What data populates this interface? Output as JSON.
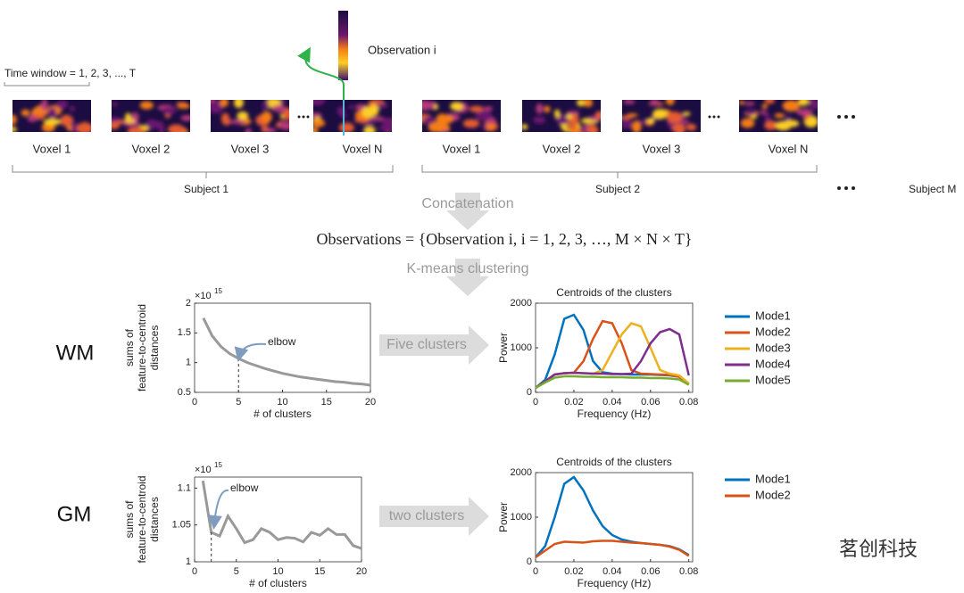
{
  "observation_label": "Observation i",
  "time_window_label": "Time window = 1, 2, 3, ..., T",
  "subjects": [
    {
      "label": "Subject 1",
      "voxels": [
        "Voxel 1",
        "Voxel 2",
        "Voxel 3",
        "Voxel N"
      ]
    },
    {
      "label": "Subject 2",
      "voxels": [
        "Voxel 1",
        "Voxel 2",
        "Voxel 3",
        "Voxel N"
      ]
    },
    {
      "label": "Subject M"
    }
  ],
  "concatenation_label": "Concatenation",
  "observations_formula": "Observations = {Observation i, i = 1, 2, 3, …, M × N × T}",
  "clustering_label": "K-means clustering",
  "rows": [
    {
      "label": "WM",
      "arrow_label": "Five clusters"
    },
    {
      "label": "GM",
      "arrow_label": "two clusters"
    }
  ],
  "watermark": "茗创科技",
  "chart_data": [
    {
      "type": "line",
      "y_label": [
        "sums of",
        "feature-to-centroid",
        "distances"
      ],
      "x_label": "# of clusters",
      "y_multiplier": {
        "base": "×10",
        "exponent": "15"
      },
      "x": [
        1,
        2,
        3,
        4,
        5,
        6,
        7,
        8,
        9,
        10,
        11,
        12,
        13,
        14,
        15,
        16,
        17,
        18,
        19,
        20
      ],
      "series": [
        {
          "color": "#999999",
          "values": [
            1.75,
            1.45,
            1.27,
            1.15,
            1.07,
            1.0,
            0.95,
            0.9,
            0.86,
            0.82,
            0.79,
            0.76,
            0.74,
            0.72,
            0.7,
            0.68,
            0.67,
            0.65,
            0.64,
            0.62
          ]
        }
      ],
      "xlim": [
        0,
        20
      ],
      "xticks": [
        0,
        5,
        10,
        15,
        20
      ],
      "ylim": [
        0.5,
        2
      ],
      "yticks": [
        0.5,
        1,
        1.5,
        2
      ],
      "annotation": {
        "label": "elbow",
        "x": 5
      }
    },
    {
      "type": "line",
      "title": "Centroids of the clusters",
      "y_label": [
        "Power"
      ],
      "x_label": "Frequency (Hz)",
      "x": [
        0,
        0.005,
        0.01,
        0.015,
        0.02,
        0.025,
        0.03,
        0.035,
        0.04,
        0.045,
        0.05,
        0.055,
        0.06,
        0.065,
        0.07,
        0.075,
        0.08
      ],
      "series": [
        {
          "name": "Mode1",
          "color": "#0072bd",
          "values": [
            100,
            280,
            850,
            1650,
            1740,
            1400,
            700,
            450,
            420,
            410,
            400,
            400,
            400,
            390,
            380,
            350,
            180
          ]
        },
        {
          "name": "Mode2",
          "color": "#d95319",
          "values": [
            100,
            250,
            400,
            430,
            440,
            700,
            1200,
            1600,
            1550,
            1100,
            500,
            420,
            410,
            400,
            390,
            350,
            180
          ]
        },
        {
          "name": "Mode3",
          "color": "#edb120",
          "values": [
            100,
            250,
            400,
            430,
            440,
            430,
            420,
            500,
            900,
            1300,
            1550,
            1480,
            1000,
            500,
            420,
            380,
            200
          ]
        },
        {
          "name": "Mode4",
          "color": "#7e2f8e",
          "values": [
            100,
            250,
            400,
            430,
            440,
            430,
            420,
            420,
            410,
            410,
            420,
            700,
            1100,
            1350,
            1420,
            1300,
            380
          ]
        },
        {
          "name": "Mode5",
          "color": "#77ac30",
          "values": [
            100,
            220,
            330,
            360,
            360,
            350,
            350,
            340,
            340,
            340,
            330,
            330,
            320,
            320,
            310,
            290,
            170
          ]
        }
      ],
      "xlim": [
        0,
        0.082
      ],
      "xticks": [
        0,
        0.02,
        0.04,
        0.06,
        0.08
      ],
      "ylim": [
        0,
        2000
      ],
      "yticks": [
        0,
        1000,
        2000
      ]
    },
    {
      "type": "line",
      "y_label": [
        "sums of",
        "feature-to-centroid",
        "distances"
      ],
      "x_label": "# of clusters",
      "y_multiplier": {
        "base": "×10",
        "exponent": "15"
      },
      "x": [
        1,
        2,
        3,
        4,
        5,
        6,
        7,
        8,
        9,
        10,
        11,
        12,
        13,
        14,
        15,
        16,
        17,
        18,
        19,
        20
      ],
      "series": [
        {
          "color": "#999999",
          "values": [
            1.11,
            1.04,
            1.035,
            1.062,
            1.045,
            1.026,
            1.03,
            1.045,
            1.04,
            1.03,
            1.033,
            1.032,
            1.027,
            1.04,
            1.036,
            1.045,
            1.037,
            1.037,
            1.022,
            1.018
          ]
        }
      ],
      "xlim": [
        0,
        20
      ],
      "xticks": [
        0,
        5,
        10,
        15,
        20
      ],
      "ylim": [
        1,
        1.115
      ],
      "yticks": [
        1,
        1.05,
        1.1
      ],
      "annotation": {
        "label": "elbow",
        "x": 2
      }
    },
    {
      "type": "line",
      "title": "Centroids of the clusters",
      "y_label": [
        "Power"
      ],
      "x_label": "Frequency (Hz)",
      "x": [
        0,
        0.005,
        0.01,
        0.015,
        0.02,
        0.025,
        0.03,
        0.035,
        0.04,
        0.045,
        0.05,
        0.055,
        0.06,
        0.065,
        0.07,
        0.075,
        0.08
      ],
      "series": [
        {
          "name": "Mode1",
          "color": "#0072bd",
          "values": [
            100,
            350,
            1000,
            1750,
            1900,
            1600,
            1150,
            800,
            600,
            500,
            450,
            420,
            400,
            380,
            350,
            280,
            150
          ]
        },
        {
          "name": "Mode2",
          "color": "#d95319",
          "values": [
            100,
            250,
            400,
            450,
            440,
            430,
            460,
            470,
            470,
            450,
            430,
            420,
            400,
            380,
            340,
            270,
            130
          ]
        }
      ],
      "xlim": [
        0,
        0.082
      ],
      "xticks": [
        0,
        0.02,
        0.04,
        0.06,
        0.08
      ],
      "ylim": [
        0,
        2000
      ],
      "yticks": [
        0,
        1000,
        2000
      ]
    }
  ]
}
